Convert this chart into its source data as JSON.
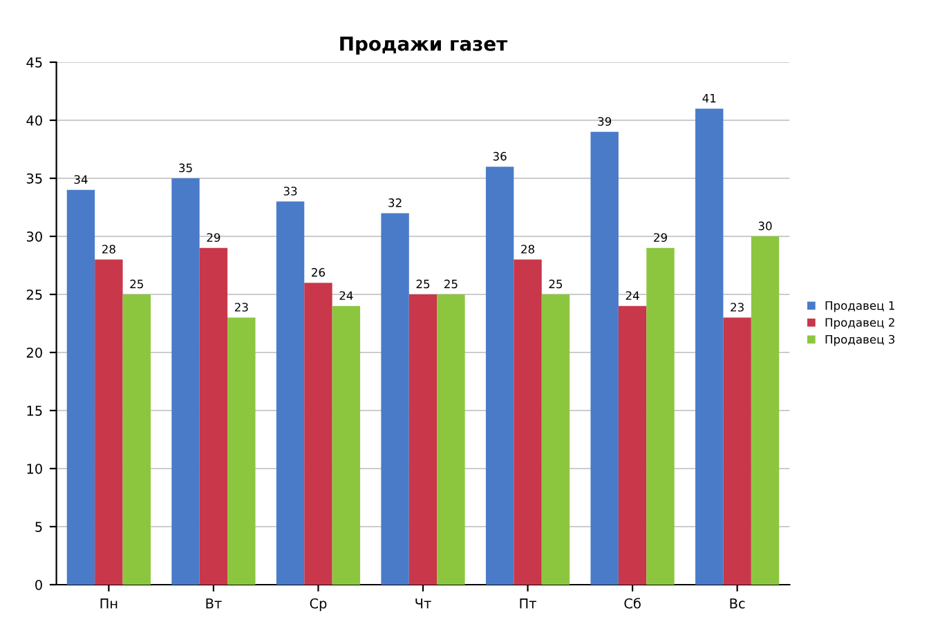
{
  "chart_data": {
    "type": "bar",
    "title": "Продажи газет",
    "categories": [
      "Пн",
      "Вт",
      "Ср",
      "Чт",
      "Пт",
      "Сб",
      "Вс"
    ],
    "series": [
      {
        "name": "Продавец 1",
        "color": "#4a7bc8",
        "values": [
          34,
          35,
          33,
          32,
          36,
          39,
          41
        ]
      },
      {
        "name": "Продавец 2",
        "color": "#c8374a",
        "values": [
          28,
          29,
          26,
          25,
          28,
          24,
          23
        ]
      },
      {
        "name": "Продавец 3",
        "color": "#8cc63f",
        "values": [
          25,
          23,
          24,
          25,
          25,
          29,
          30
        ]
      }
    ],
    "ylim": [
      0,
      45
    ],
    "yticks": [
      0,
      5,
      10,
      15,
      20,
      25,
      30,
      35,
      40,
      45
    ],
    "grid": "y",
    "legend": "right",
    "data_labels": true
  }
}
